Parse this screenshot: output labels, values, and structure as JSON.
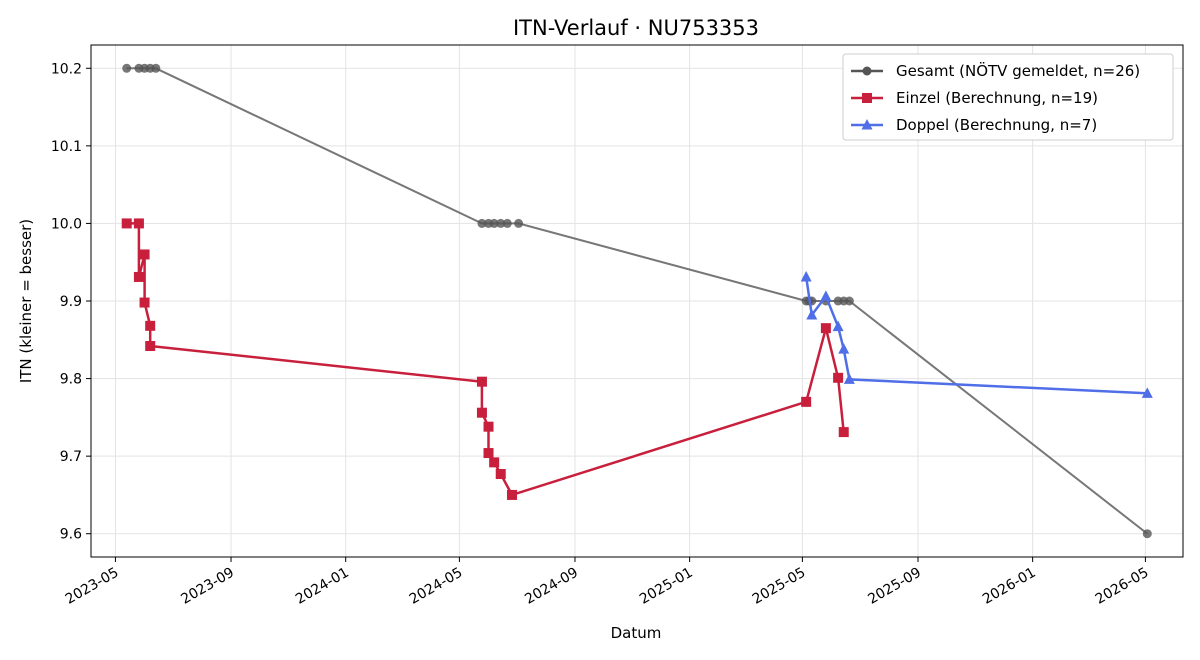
{
  "chart_data": {
    "type": "line",
    "title": "ITN-Verlauf · NU753353",
    "xlabel": "Datum",
    "ylabel": "ITN  (kleiner = besser)",
    "xlim": [
      "2023-04-05",
      "2026-06-10"
    ],
    "ylim": [
      9.57,
      10.23
    ],
    "grid": true,
    "legend_position": "top-right",
    "x_ticks": [
      "2023-05-01",
      "2023-09-01",
      "2024-01-01",
      "2024-05-01",
      "2024-09-01",
      "2025-01-01",
      "2025-05-01",
      "2025-09-01",
      "2026-01-01",
      "2026-05-01"
    ],
    "x_tick_labels": [
      "2023-05",
      "2023-09",
      "2024-01",
      "2024-05",
      "2024-09",
      "2025-01",
      "2025-05",
      "2025-09",
      "2026-01",
      "2026-05"
    ],
    "y_ticks": [
      9.6,
      9.7,
      9.8,
      9.9,
      10.0,
      10.1,
      10.2
    ],
    "y_tick_labels": [
      "9.6",
      "9.7",
      "9.8",
      "9.9",
      "10.0",
      "10.1",
      "10.2"
    ],
    "series": [
      {
        "name": "Gesamt (NÖTV gemeldet, n=26)",
        "color": "#555555",
        "marker": "circle",
        "points": [
          {
            "x": "2023-05-13",
            "y": 10.2
          },
          {
            "x": "2023-05-26",
            "y": 10.2
          },
          {
            "x": "2023-06-01",
            "y": 10.2
          },
          {
            "x": "2023-06-07",
            "y": 10.2
          },
          {
            "x": "2023-06-13",
            "y": 10.2
          },
          {
            "x": "2024-05-25",
            "y": 10.0
          },
          {
            "x": "2024-06-01",
            "y": 10.0
          },
          {
            "x": "2024-06-07",
            "y": 10.0
          },
          {
            "x": "2024-06-14",
            "y": 10.0
          },
          {
            "x": "2024-06-21",
            "y": 10.0
          },
          {
            "x": "2024-07-03",
            "y": 10.0
          },
          {
            "x": "2025-05-05",
            "y": 9.9
          },
          {
            "x": "2025-05-08",
            "y": 9.9
          },
          {
            "x": "2025-05-11",
            "y": 9.9
          },
          {
            "x": "2025-05-26",
            "y": 9.9
          },
          {
            "x": "2025-06-08",
            "y": 9.9
          },
          {
            "x": "2025-06-14",
            "y": 9.9
          },
          {
            "x": "2025-06-20",
            "y": 9.9
          },
          {
            "x": "2026-05-03",
            "y": 9.6
          }
        ]
      },
      {
        "name": "Einzel (Berechnung, n=19)",
        "color": "#c8203c",
        "marker": "square",
        "points": [
          {
            "x": "2023-05-13",
            "y": 10.0
          },
          {
            "x": "2023-05-26",
            "y": 10.0
          },
          {
            "x": "2023-05-26",
            "y": 9.931
          },
          {
            "x": "2023-06-01",
            "y": 9.96
          },
          {
            "x": "2023-06-01",
            "y": 9.898
          },
          {
            "x": "2023-06-07",
            "y": 9.868
          },
          {
            "x": "2023-06-07",
            "y": 9.842
          },
          {
            "x": "2024-05-25",
            "y": 9.796
          },
          {
            "x": "2024-05-25",
            "y": 9.756
          },
          {
            "x": "2024-06-01",
            "y": 9.738
          },
          {
            "x": "2024-06-01",
            "y": 9.704
          },
          {
            "x": "2024-06-07",
            "y": 9.692
          },
          {
            "x": "2024-06-14",
            "y": 9.677
          },
          {
            "x": "2024-06-26",
            "y": 9.65
          },
          {
            "x": "2025-05-05",
            "y": 9.77
          },
          {
            "x": "2025-05-26",
            "y": 9.865
          },
          {
            "x": "2025-06-08",
            "y": 9.801
          },
          {
            "x": "2025-06-14",
            "y": 9.731
          }
        ]
      },
      {
        "name": "Doppel (Berechnung, n=7)",
        "color": "#4f6ee8",
        "marker": "triangle",
        "points": [
          {
            "x": "2025-05-05",
            "y": 9.931
          },
          {
            "x": "2025-05-11",
            "y": 9.882
          },
          {
            "x": "2025-05-26",
            "y": 9.906
          },
          {
            "x": "2025-06-08",
            "y": 9.867
          },
          {
            "x": "2025-06-14",
            "y": 9.838
          },
          {
            "x": "2025-06-20",
            "y": 9.799
          },
          {
            "x": "2026-05-03",
            "y": 9.781
          }
        ]
      }
    ]
  }
}
